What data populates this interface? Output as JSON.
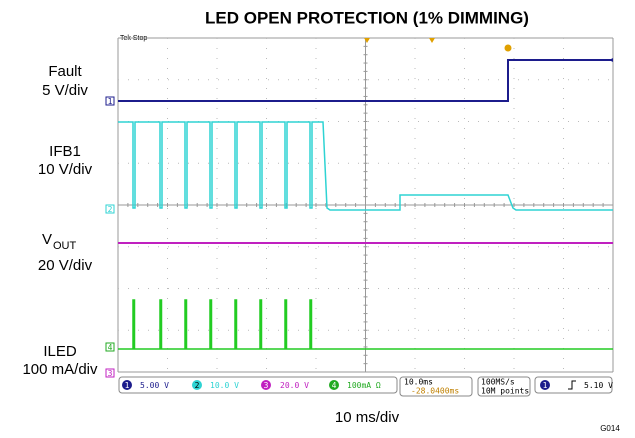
{
  "title": "LED OPEN PROTECTION (1% DIMMING)",
  "channels": [
    {
      "number": "1",
      "name": "Fault",
      "scale": "5 V/div",
      "readout": "5.00 V"
    },
    {
      "number": "2",
      "name": "IFB1",
      "scale": "10 V/div",
      "readout": "10.0 V"
    },
    {
      "number": "3",
      "name": "V",
      "subscript": "OUT",
      "scale": "20 V/div",
      "readout": "20.0 V"
    },
    {
      "number": "4",
      "name": "ILED",
      "scale": "100 mA/div",
      "readout": "100mA Ω"
    }
  ],
  "scope": {
    "status": "Tek Stop",
    "timebase": "10.0ms",
    "position": "-28.0400ms",
    "sample_rate": "100MS/s",
    "record": "10M points",
    "trigger_channel": "1",
    "trigger_level": "5.10 V"
  },
  "x_label": "10 ms/div",
  "figure_id": "G014"
}
